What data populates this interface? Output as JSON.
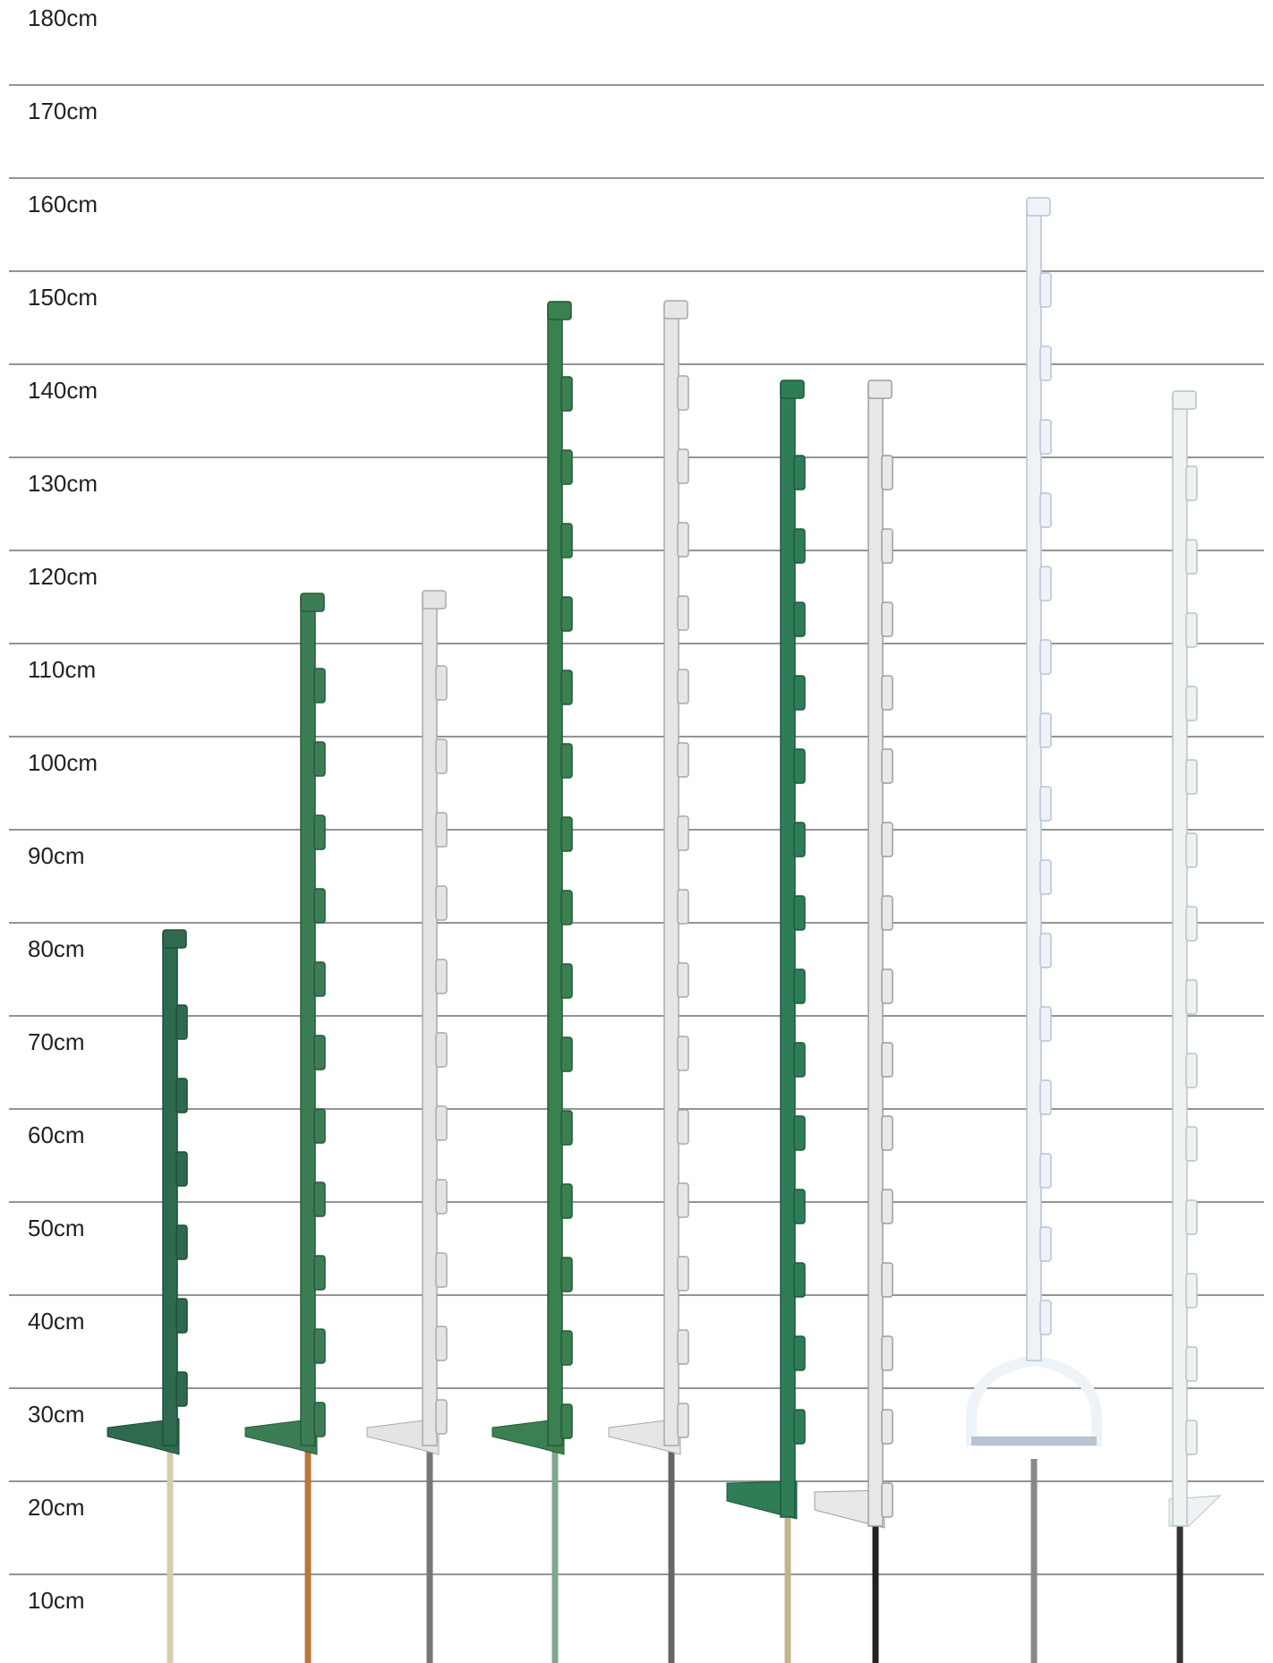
{
  "scale": {
    "labels": [
      "180cm",
      "170cm",
      "160cm",
      "150cm",
      "140cm",
      "130cm",
      "120cm",
      "110cm",
      "100cm",
      "90cm",
      "80cm",
      "70cm",
      "60cm",
      "50cm",
      "40cm",
      "30cm",
      "20cm",
      "10cm"
    ]
  }
}
